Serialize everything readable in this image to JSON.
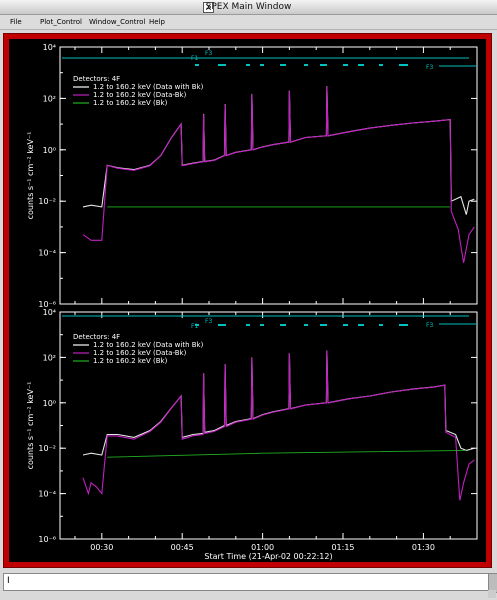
{
  "window": {
    "title": "SPEX Main Window",
    "icon": "x-window-icon"
  },
  "menu": {
    "items": [
      "File",
      "Plot_Control",
      "Window_Control",
      "Help"
    ]
  },
  "status": {
    "text": "I"
  },
  "colors": {
    "data_with_bk": "#ffffff",
    "data_minus_bk": "#c020c0",
    "bk": "#20b020",
    "attenuator": "#00c0c0",
    "frame": "#c00000"
  },
  "chart_data": [
    {
      "type": "line",
      "title": "",
      "xlabel": "",
      "ylabel": "counts s⁻¹ cm⁻² keV⁻¹",
      "yscale": "log",
      "ylim": [
        1e-06,
        10000.0
      ],
      "y_ticks": [
        {
          "value": 10000.0,
          "label": "10⁴"
        },
        {
          "value": 100.0,
          "label": "10²"
        },
        {
          "value": 1,
          "label": "10⁰"
        },
        {
          "value": 0.01,
          "label": "10⁻²"
        },
        {
          "value": 0.0001,
          "label": "10⁻⁴"
        },
        {
          "value": 1e-06,
          "label": "10⁻⁶"
        }
      ],
      "legend": {
        "title": "Detectors: 4F",
        "placement": "top-left",
        "entries": [
          "1.2 to 160.2 keV (Data with Bk)",
          "1.2 to 160.2 keV (Data-Bk)",
          "1.2 to 160.2 keV (Bk)"
        ]
      },
      "attenuator_labels": [
        "F1",
        "F3",
        "F3"
      ],
      "series": [
        {
          "name": "1.2 to 160.2 keV (Data with Bk)",
          "points": [
            [
              26.5,
              0.006
            ],
            [
              28,
              0.007
            ],
            [
              30,
              0.006
            ],
            [
              31,
              0.25
            ],
            [
              33,
              0.2
            ],
            [
              36,
              0.17
            ],
            [
              39,
              0.25
            ],
            [
              41,
              0.6
            ],
            [
              43,
              3
            ],
            [
              44.8,
              10
            ],
            [
              45,
              0.25
            ],
            [
              47,
              0.3
            ],
            [
              48.9,
              0.35
            ],
            [
              49,
              25
            ],
            [
              49.2,
              0.35
            ],
            [
              51,
              0.4
            ],
            [
              52.9,
              0.6
            ],
            [
              53,
              60
            ],
            [
              53.2,
              0.6
            ],
            [
              55,
              0.8
            ],
            [
              57.9,
              1
            ],
            [
              58,
              150
            ],
            [
              58.2,
              1
            ],
            [
              60,
              1.3
            ],
            [
              62,
              1.6
            ],
            [
              64.9,
              2
            ],
            [
              65,
              200
            ],
            [
              65.2,
              2
            ],
            [
              68,
              3
            ],
            [
              71.9,
              3.5
            ],
            [
              72,
              300
            ],
            [
              72.2,
              3.5
            ],
            [
              76,
              5
            ],
            [
              80,
              7
            ],
            [
              84,
              9
            ],
            [
              88,
              11
            ],
            [
              92,
              13
            ],
            [
              95,
              15
            ],
            [
              95.2,
              0.01
            ],
            [
              97,
              0.015
            ],
            [
              98,
              0.003
            ],
            [
              98.5,
              0.01
            ],
            [
              99.5,
              0.012
            ]
          ]
        },
        {
          "name": "1.2 to 160.2 keV (Data-Bk)",
          "points": [
            [
              26.5,
              0.0005
            ],
            [
              28,
              0.0003
            ],
            [
              30,
              0.0003
            ],
            [
              31,
              0.25
            ],
            [
              33,
              0.19
            ],
            [
              36,
              0.16
            ],
            [
              39,
              0.24
            ],
            [
              41,
              0.6
            ],
            [
              43,
              3
            ],
            [
              44.8,
              10
            ],
            [
              45,
              0.24
            ],
            [
              47,
              0.29
            ],
            [
              48.9,
              0.34
            ],
            [
              49,
              24
            ],
            [
              49.2,
              0.34
            ],
            [
              51,
              0.39
            ],
            [
              52.9,
              0.59
            ],
            [
              53,
              58
            ],
            [
              53.2,
              0.59
            ],
            [
              55,
              0.79
            ],
            [
              57.9,
              0.99
            ],
            [
              58,
              148
            ],
            [
              58.2,
              0.99
            ],
            [
              60,
              1.29
            ],
            [
              62,
              1.59
            ],
            [
              64.9,
              1.99
            ],
            [
              65,
              198
            ],
            [
              65.2,
              1.99
            ],
            [
              68,
              2.99
            ],
            [
              71.9,
              3.49
            ],
            [
              72,
              298
            ],
            [
              72.2,
              3.49
            ],
            [
              76,
              4.99
            ],
            [
              80,
              6.99
            ],
            [
              84,
              8.99
            ],
            [
              88,
              10.99
            ],
            [
              92,
              12.99
            ],
            [
              95,
              14.99
            ],
            [
              95.2,
              0.004
            ],
            [
              96.5,
              0.0008
            ],
            [
              97.5,
              4e-05
            ],
            [
              98.5,
              0.0005
            ],
            [
              99.5,
              0.001
            ]
          ]
        },
        {
          "name": "1.2 to 160.2 keV (Bk)",
          "points": [
            [
              31,
              0.006
            ],
            [
              95,
              0.006
            ]
          ]
        }
      ]
    },
    {
      "type": "line",
      "title": "",
      "xlabel": "Start Time (21-Apr-02 00:22:12)",
      "ylabel": "counts s⁻¹ cm⁻² keV⁻¹",
      "yscale": "log",
      "ylim": [
        1e-06,
        10000.0
      ],
      "xlim": [
        22.2,
        100
      ],
      "x_ticks": [
        {
          "value": 30,
          "label": "00:30"
        },
        {
          "value": 45,
          "label": "00:45"
        },
        {
          "value": 60,
          "label": "01:00"
        },
        {
          "value": 75,
          "label": "01:15"
        },
        {
          "value": 90,
          "label": "01:30"
        }
      ],
      "y_ticks": [
        {
          "value": 10000.0,
          "label": "10⁴"
        },
        {
          "value": 100.0,
          "label": "10²"
        },
        {
          "value": 1,
          "label": "10⁰"
        },
        {
          "value": 0.01,
          "label": "10⁻²"
        },
        {
          "value": 0.0001,
          "label": "10⁻⁴"
        },
        {
          "value": 1e-06,
          "label": "10⁻⁶"
        }
      ],
      "legend": {
        "title": "Detectors: 4F",
        "placement": "top-left",
        "entries": [
          "1.2 to 160.2 keV (Data with Bk)",
          "1.2 to 160.2 keV (Data-Bk)",
          "1.2 to 160.2 keV (Bk)"
        ]
      },
      "attenuator_labels": [
        "F1",
        "F3",
        "F3"
      ],
      "series": [
        {
          "name": "1.2 to 160.2 keV (Data with Bk)",
          "points": [
            [
              26.5,
              0.005
            ],
            [
              28,
              0.006
            ],
            [
              30,
              0.005
            ],
            [
              31,
              0.04
            ],
            [
              33,
              0.04
            ],
            [
              36,
              0.03
            ],
            [
              39,
              0.06
            ],
            [
              41,
              0.15
            ],
            [
              43,
              0.6
            ],
            [
              44.8,
              2
            ],
            [
              45,
              0.03
            ],
            [
              47,
              0.04
            ],
            [
              48.9,
              0.045
            ],
            [
              49,
              20
            ],
            [
              49.2,
              0.05
            ],
            [
              51,
              0.06
            ],
            [
              52.9,
              0.1
            ],
            [
              53,
              50
            ],
            [
              53.2,
              0.1
            ],
            [
              55,
              0.15
            ],
            [
              57.9,
              0.2
            ],
            [
              58,
              100
            ],
            [
              58.2,
              0.2
            ],
            [
              60,
              0.3
            ],
            [
              62,
              0.4
            ],
            [
              64.9,
              0.55
            ],
            [
              65,
              150
            ],
            [
              65.2,
              0.55
            ],
            [
              68,
              0.8
            ],
            [
              71.9,
              1
            ],
            [
              72,
              200
            ],
            [
              72.2,
              1
            ],
            [
              76,
              1.5
            ],
            [
              80,
              2
            ],
            [
              84,
              3
            ],
            [
              88,
              4
            ],
            [
              92,
              5
            ],
            [
              94,
              6
            ],
            [
              94.2,
              0.06
            ],
            [
              96,
              0.04
            ],
            [
              97,
              0.01
            ],
            [
              98,
              0.008
            ],
            [
              99.5,
              0.01
            ]
          ]
        },
        {
          "name": "1.2 to 160.2 keV (Data-Bk)",
          "points": [
            [
              26.5,
              0.0005
            ],
            [
              27.5,
              0.0001
            ],
            [
              28,
              0.0003
            ],
            [
              29,
              0.0002
            ],
            [
              30,
              0.0001
            ],
            [
              31,
              0.035
            ],
            [
              33,
              0.034
            ],
            [
              36,
              0.025
            ],
            [
              39,
              0.055
            ],
            [
              41,
              0.14
            ],
            [
              43,
              0.59
            ],
            [
              44.8,
              2
            ],
            [
              45,
              0.025
            ],
            [
              47,
              0.035
            ],
            [
              48.9,
              0.04
            ],
            [
              49,
              20
            ],
            [
              49.2,
              0.045
            ],
            [
              51,
              0.055
            ],
            [
              52.9,
              0.09
            ],
            [
              53,
              50
            ],
            [
              53.2,
              0.09
            ],
            [
              55,
              0.14
            ],
            [
              57.9,
              0.19
            ],
            [
              58,
              100
            ],
            [
              58.2,
              0.19
            ],
            [
              60,
              0.29
            ],
            [
              62,
              0.39
            ],
            [
              64.9,
              0.54
            ],
            [
              65,
              150
            ],
            [
              65.2,
              0.54
            ],
            [
              68,
              0.79
            ],
            [
              71.9,
              0.99
            ],
            [
              72,
              200
            ],
            [
              72.2,
              0.99
            ],
            [
              76,
              1.49
            ],
            [
              80,
              1.99
            ],
            [
              84,
              2.99
            ],
            [
              88,
              3.99
            ],
            [
              92,
              4.99
            ],
            [
              94,
              5.99
            ],
            [
              94.2,
              0.05
            ],
            [
              96,
              0.03
            ],
            [
              96.8,
              5e-05
            ],
            [
              97.5,
              0.0003
            ],
            [
              98.5,
              0.002
            ],
            [
              99.5,
              0.003
            ]
          ]
        },
        {
          "name": "1.2 to 160.2 keV (Bk)",
          "points": [
            [
              31,
              0.004
            ],
            [
              60,
              0.006
            ],
            [
              98,
              0.008
            ]
          ]
        }
      ]
    }
  ]
}
